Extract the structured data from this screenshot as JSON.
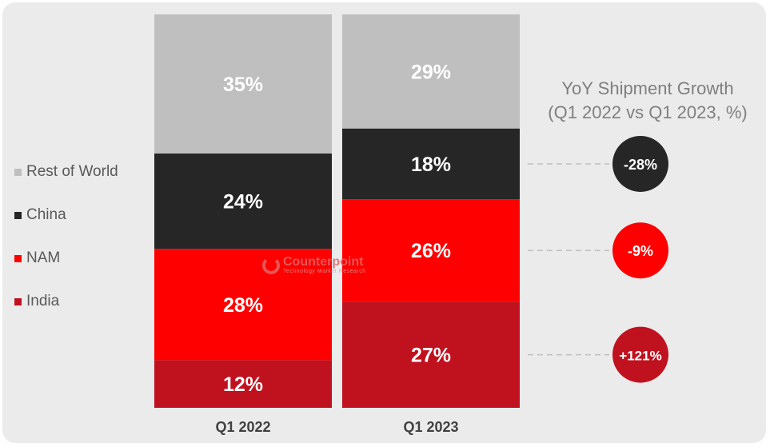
{
  "chart_data": {
    "type": "bar",
    "stacked": true,
    "categories": [
      "Q1 2022",
      "Q1 2023"
    ],
    "series": [
      {
        "name": "India",
        "values": [
          12,
          27
        ],
        "labels": [
          "12%",
          "27%"
        ],
        "color": "#c0111f"
      },
      {
        "name": "NAM",
        "values": [
          28,
          26
        ],
        "labels": [
          "28%",
          "26%"
        ],
        "color": "#ff0000"
      },
      {
        "name": "China",
        "values": [
          24,
          18
        ],
        "labels": [
          "24%",
          "18%"
        ],
        "color": "#262626"
      },
      {
        "name": "Rest of World",
        "values": [
          35,
          29
        ],
        "labels": [
          "35%",
          "29%"
        ],
        "color": "#bfbfbf"
      }
    ],
    "ylim": [
      0,
      100
    ],
    "legend_position": "left",
    "grid": false,
    "yoy": {
      "title_line1": "YoY Shipment Growth",
      "title_line2": "(Q1 2022 vs Q1 2023, %)",
      "items": [
        {
          "series": "China",
          "label": "-28%",
          "value": -28,
          "color": "#262626"
        },
        {
          "series": "NAM",
          "label": "-9%",
          "value": -9,
          "color": "#ff0000"
        },
        {
          "series": "India",
          "label": "+121%",
          "value": 121,
          "color": "#c0111f"
        }
      ]
    }
  },
  "legend": [
    {
      "label": "Rest of World",
      "color": "#bfbfbf"
    },
    {
      "label": "China",
      "color": "#262626"
    },
    {
      "label": "NAM",
      "color": "#ff0000"
    },
    {
      "label": "India",
      "color": "#c0111f"
    }
  ],
  "watermark": {
    "brand": "Counterpoint",
    "sub": "Technology Market Research"
  }
}
